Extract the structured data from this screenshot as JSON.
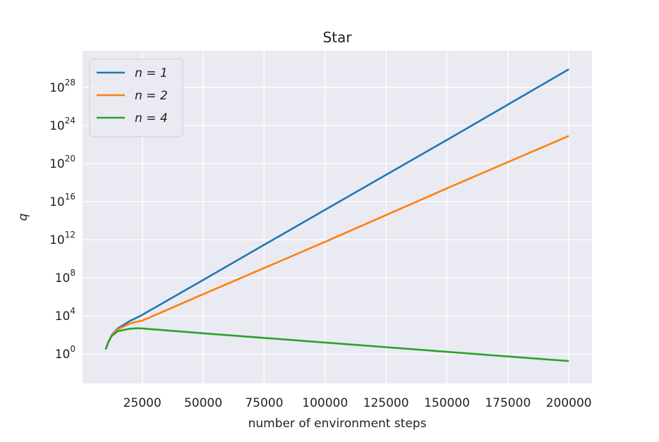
{
  "chart_data": {
    "type": "line",
    "title": "Star",
    "x_label": "number of environment steps",
    "y_label": "q",
    "x": [
      10000,
      11000,
      12500,
      15000,
      20000,
      23000,
      25000,
      50000,
      100000,
      150000,
      200000
    ],
    "series": [
      {
        "name": "n = 1",
        "color": "#1f77b4",
        "values": [
          3,
          16,
          100,
          500,
          3000,
          7000,
          13000,
          60000000,
          1400000000000000.0,
          3e+22,
          8e+29
        ]
      },
      {
        "name": "n = 2",
        "color": "#ff7f0e",
        "values": [
          3,
          16,
          90,
          400,
          1600,
          2500,
          3200,
          1900000,
          600000000000.0,
          2.5e+17,
          8e+22
        ]
      },
      {
        "name": "n = 4",
        "color": "#2ca02c",
        "values": [
          3,
          16,
          80,
          250,
          450,
          500,
          480,
          150,
          16,
          1.7,
          0.18
        ]
      }
    ],
    "xlim": [
      500,
      209500
    ],
    "ylim": [
      0.0008,
      7e+31
    ],
    "log_y": true,
    "grid": true,
    "legend": "upper left",
    "xticks": [
      25000,
      50000,
      75000,
      100000,
      125000,
      150000,
      175000,
      200000
    ],
    "yticks": [
      {
        "value": 1,
        "label": "10^0"
      },
      {
        "value": 10000,
        "label": "10^4"
      },
      {
        "value": 100000000.0,
        "label": "10^8"
      },
      {
        "value": 1000000000000.0,
        "label": "10^12"
      },
      {
        "value": 1e+16,
        "label": "10^16"
      },
      {
        "value": 1e+20,
        "label": "10^20"
      },
      {
        "value": 1e+24,
        "label": "10^24"
      },
      {
        "value": 1e+28,
        "label": "10^28"
      }
    ]
  }
}
